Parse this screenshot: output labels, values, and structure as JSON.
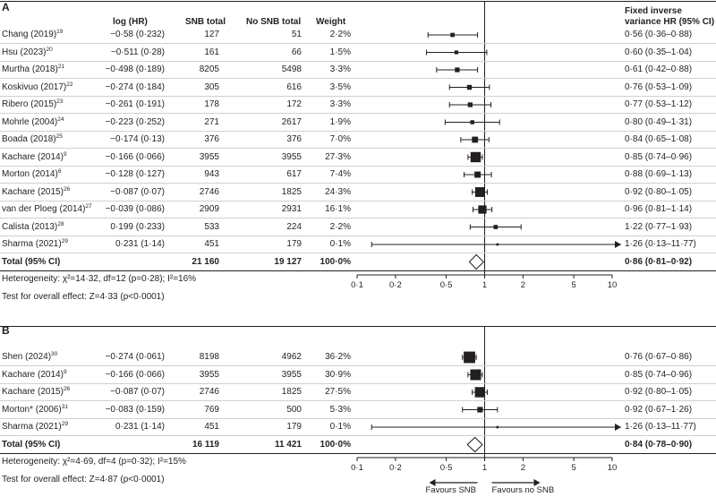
{
  "header": {
    "col_log": "log (HR)",
    "col_snb": "SNB total",
    "col_nosnb": "No SNB total",
    "col_weight": "Weight",
    "col_hr_line1": "Fixed inverse",
    "col_hr_line2": "variance HR (95% CI)"
  },
  "axis": {
    "ticks": [
      0.1,
      0.2,
      0.5,
      1,
      2,
      5,
      10
    ],
    "tick_labels": [
      "0·1",
      "0·2",
      "0·5",
      "1",
      "2",
      "5",
      "10"
    ],
    "xlim": [
      0.1,
      10
    ],
    "favours_left": "Favours SNB",
    "favours_right": "Favours no SNB"
  },
  "chart_data": [
    {
      "type": "forest",
      "panel": "A",
      "x_scale": "log",
      "xlim": [
        0.1,
        10
      ],
      "studies": [
        {
          "name": "Chang (2019)",
          "ref": "19",
          "log_hr": "−0·58 (0·232)",
          "snb": "127",
          "nosnb": "51",
          "weight": "2·2%",
          "ci_text": "0·56 (0·36–0·88)",
          "hr": 0.56,
          "lo": 0.36,
          "hi": 0.88,
          "w": 2.2
        },
        {
          "name": "Hsu (2023)",
          "ref": "20",
          "log_hr": "−0·511 (0·28)",
          "snb": "161",
          "nosnb": "66",
          "weight": "1·5%",
          "ci_text": "0·60 (0·35–1·04)",
          "hr": 0.6,
          "lo": 0.35,
          "hi": 1.04,
          "w": 1.5
        },
        {
          "name": "Murtha (2018)",
          "ref": "21",
          "log_hr": "−0·498 (0·189)",
          "snb": "8205",
          "nosnb": "5498",
          "weight": "3·3%",
          "ci_text": "0·61 (0·42–0·88)",
          "hr": 0.61,
          "lo": 0.42,
          "hi": 0.88,
          "w": 3.3
        },
        {
          "name": "Koskivuo (2017)",
          "ref": "22",
          "log_hr": "−0·274 (0·184)",
          "snb": "305",
          "nosnb": "616",
          "weight": "3·5%",
          "ci_text": "0·76 (0·53–1·09)",
          "hr": 0.76,
          "lo": 0.53,
          "hi": 1.09,
          "w": 3.5
        },
        {
          "name": "Ribero (2015)",
          "ref": "23",
          "log_hr": "−0·261 (0·191)",
          "snb": "178",
          "nosnb": "172",
          "weight": "3·3%",
          "ci_text": "0·77 (0·53–1·12)",
          "hr": 0.77,
          "lo": 0.53,
          "hi": 1.12,
          "w": 3.3
        },
        {
          "name": "Mohrle (2004)",
          "ref": "24",
          "log_hr": "−0·223 (0·252)",
          "snb": "271",
          "nosnb": "2617",
          "weight": "1·9%",
          "ci_text": "0·80 (0·49–1·31)",
          "hr": 0.8,
          "lo": 0.49,
          "hi": 1.31,
          "w": 1.9
        },
        {
          "name": "Boada (2018)",
          "ref": "25",
          "log_hr": "−0·174 (0·13)",
          "snb": "376",
          "nosnb": "376",
          "weight": "7·0%",
          "ci_text": "0·84 (0·65–1·08)",
          "hr": 0.84,
          "lo": 0.65,
          "hi": 1.08,
          "w": 7.0
        },
        {
          "name": "Kachare (2014)",
          "ref": "9",
          "log_hr": "−0·166 (0·066)",
          "snb": "3955",
          "nosnb": "3955",
          "weight": "27·3%",
          "ci_text": "0·85 (0·74–0·96)",
          "hr": 0.85,
          "lo": 0.74,
          "hi": 0.96,
          "w": 27.3
        },
        {
          "name": "Morton (2014)",
          "ref": "6",
          "log_hr": "−0·128 (0·127)",
          "snb": "943",
          "nosnb": "617",
          "weight": "7·4%",
          "ci_text": "0·88 (0·69–1·13)",
          "hr": 0.88,
          "lo": 0.69,
          "hi": 1.13,
          "w": 7.4
        },
        {
          "name": "Kachare (2015)",
          "ref": "26",
          "log_hr": "−0·087 (0·07)",
          "snb": "2746",
          "nosnb": "1825",
          "weight": "24·3%",
          "ci_text": "0·92 (0·80–1·05)",
          "hr": 0.92,
          "lo": 0.8,
          "hi": 1.05,
          "w": 24.3
        },
        {
          "name": "van der Ploeg (2014)",
          "ref": "27",
          "log_hr": "−0·039 (0·086)",
          "snb": "2909",
          "nosnb": "2931",
          "weight": "16·1%",
          "ci_text": "0·96 (0·81–1·14)",
          "hr": 0.96,
          "lo": 0.81,
          "hi": 1.14,
          "w": 16.1
        },
        {
          "name": "Calista (2013)",
          "ref": "28",
          "log_hr": "0·199 (0·233)",
          "snb": "533",
          "nosnb": "224",
          "weight": "2·2%",
          "ci_text": "1·22 (0·77–1·93)",
          "hr": 1.22,
          "lo": 0.77,
          "hi": 1.93,
          "w": 2.2
        },
        {
          "name": "Sharma (2021)",
          "ref": "29",
          "log_hr": "0·231 (1·14)",
          "snb": "451",
          "nosnb": "179",
          "weight": "0·1%",
          "ci_text": "1·26 (0·13–11·77)",
          "hr": 1.26,
          "lo": 0.13,
          "hi": 11.77,
          "w": 0.1
        }
      ],
      "total": {
        "name": "Total (95% CI)",
        "snb": "21 160",
        "nosnb": "19 127",
        "weight": "100·0%",
        "ci_text": "0·86 (0·81–0·92)",
        "hr": 0.86,
        "lo": 0.81,
        "hi": 0.92
      },
      "heterogeneity": "Heterogeneity: χ²=14·32, df=12 (p=0·28); I²=16%",
      "overall_effect": "Test for overall effect: Z=4·33 (p<0·0001)"
    },
    {
      "type": "forest",
      "panel": "B",
      "x_scale": "log",
      "xlim": [
        0.1,
        10
      ],
      "studies": [
        {
          "name": "Shen (2024)",
          "ref": "30",
          "log_hr": "−0·274 (0·061)",
          "snb": "8198",
          "nosnb": "4962",
          "weight": "36·2%",
          "ci_text": "0·76 (0·67–0·86)",
          "hr": 0.76,
          "lo": 0.67,
          "hi": 0.86,
          "w": 36.2
        },
        {
          "name": "Kachare (2014)",
          "ref": "9",
          "log_hr": "−0·166 (0·066)",
          "snb": "3955",
          "nosnb": "3955",
          "weight": "30·9%",
          "ci_text": "0·85 (0·74–0·96)",
          "hr": 0.85,
          "lo": 0.74,
          "hi": 0.96,
          "w": 30.9
        },
        {
          "name": "Kachare (2015)",
          "ref": "26",
          "log_hr": "−0·087 (0·07)",
          "snb": "2746",
          "nosnb": "1825",
          "weight": "27·5%",
          "ci_text": "0·92 (0·80–1·05)",
          "hr": 0.92,
          "lo": 0.8,
          "hi": 1.05,
          "w": 27.5
        },
        {
          "name": "Morton* (2006)",
          "ref": "31",
          "log_hr": "−0·083 (0·159)",
          "snb": "769",
          "nosnb": "500",
          "weight": "5·3%",
          "ci_text": "0·92 (0·67–1·26)",
          "hr": 0.92,
          "lo": 0.67,
          "hi": 1.26,
          "w": 5.3
        },
        {
          "name": "Sharma (2021)",
          "ref": "29",
          "log_hr": "0·231 (1·14)",
          "snb": "451",
          "nosnb": "179",
          "weight": "0·1%",
          "ci_text": "1·26 (0·13–11·77)",
          "hr": 1.26,
          "lo": 0.13,
          "hi": 11.77,
          "w": 0.1
        }
      ],
      "total": {
        "name": "Total (95% CI)",
        "snb": "16 119",
        "nosnb": "11 421",
        "weight": "100·0%",
        "ci_text": "0·84 (0·78–0·90)",
        "hr": 0.84,
        "lo": 0.78,
        "hi": 0.9
      },
      "heterogeneity": "Heterogeneity: χ²=4·69, df=4 (p=0·32); I²=15%",
      "overall_effect": "Test for overall effect: Z=4·87 (p<0·0001)"
    }
  ]
}
